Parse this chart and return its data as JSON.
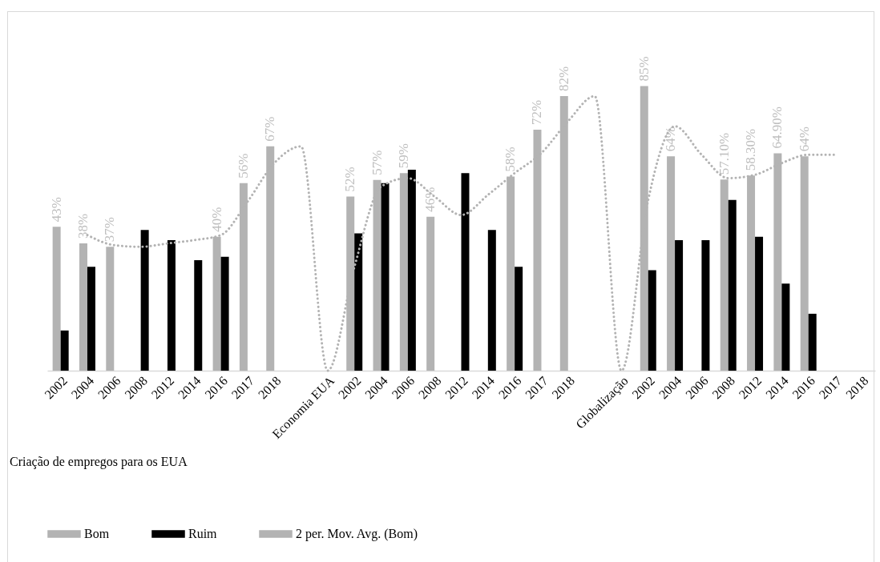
{
  "chart_data": {
    "type": "bar",
    "categories": [
      "2002",
      "2004",
      "2006",
      "2008",
      "2012",
      "2014",
      "2016",
      "2017",
      "2018",
      null,
      "Economia EUA",
      "2002",
      "2004",
      "2006",
      "2008",
      "2012",
      "2014",
      "2016",
      "2017",
      "2018",
      null,
      "Globalização",
      "2002",
      "2004",
      "2006",
      "2008",
      "2012",
      "2014",
      "2016",
      "2017",
      "2018"
    ],
    "series": [
      {
        "name": "Bom",
        "color": "#b3b3b3",
        "values": [
          43,
          38,
          37,
          null,
          null,
          null,
          40,
          56,
          67,
          null,
          null,
          52,
          57,
          59,
          46,
          null,
          null,
          58,
          72,
          82,
          null,
          null,
          85,
          64,
          null,
          57.1,
          58.3,
          64.9,
          64,
          null,
          null
        ],
        "value_labels": [
          "43%",
          "38%",
          "37%",
          null,
          null,
          null,
          "40%",
          "56%",
          "67%",
          null,
          null,
          "52%",
          "57%",
          "59%",
          "46%",
          null,
          null,
          "58%",
          "72%",
          "82%",
          null,
          null,
          "85%",
          "64%",
          null,
          "57.10%",
          "58.30%",
          "64.90%",
          "64%",
          null,
          null
        ]
      },
      {
        "name": "Ruim",
        "color": "#000000",
        "values": [
          12,
          31,
          null,
          42,
          39,
          33,
          34,
          null,
          null,
          null,
          null,
          41,
          56,
          60,
          null,
          59,
          42,
          31,
          null,
          null,
          null,
          null,
          30,
          39,
          39,
          51,
          40,
          26,
          17,
          null,
          null
        ]
      },
      {
        "name": "2 per. Mov. Avg. (Bom)",
        "type": "line",
        "line_style": "dotted",
        "color": "#b3b3b3",
        "values": [
          null,
          40.5,
          37.5,
          37,
          38,
          39,
          40.5,
          50.5,
          62,
          67,
          0,
          31,
          55,
          57.5,
          52,
          46.5,
          52.5,
          59,
          65,
          74.5,
          82,
          0,
          51,
          73,
          64.5,
          57.5,
          58.5,
          62,
          64.5,
          64.5,
          null
        ]
      }
    ],
    "annotations": [
      "Criação de empregos para os EUA"
    ],
    "tick_labels": "x",
    "legend": "bottom"
  }
}
